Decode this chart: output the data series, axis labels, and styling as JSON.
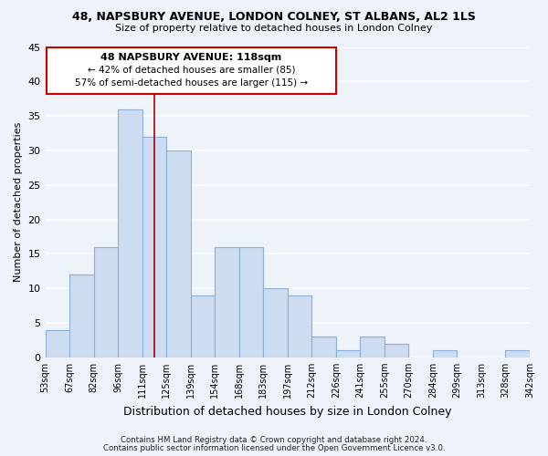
{
  "title": "48, NAPSBURY AVENUE, LONDON COLNEY, ST ALBANS, AL2 1LS",
  "subtitle": "Size of property relative to detached houses in London Colney",
  "xlabel": "Distribution of detached houses by size in London Colney",
  "ylabel": "Number of detached properties",
  "bin_labels": [
    "53sqm",
    "67sqm",
    "82sqm",
    "96sqm",
    "111sqm",
    "125sqm",
    "139sqm",
    "154sqm",
    "168sqm",
    "183sqm",
    "197sqm",
    "212sqm",
    "226sqm",
    "241sqm",
    "255sqm",
    "270sqm",
    "284sqm",
    "299sqm",
    "313sqm",
    "328sqm",
    "342sqm"
  ],
  "bar_heights": [
    4,
    12,
    16,
    36,
    32,
    30,
    9,
    16,
    16,
    10,
    9,
    3,
    1,
    3,
    2,
    0,
    1,
    0,
    0,
    1
  ],
  "bar_color": "#cddcf0",
  "bar_edgecolor": "#8ab0d8",
  "property_line_x": 4.0,
  "property_line_color": "#aa0000",
  "annotation_title": "48 NAPSBURY AVENUE: 118sqm",
  "annotation_line1": "← 42% of detached houses are smaller (85)",
  "annotation_line2": "57% of semi-detached houses are larger (115) →",
  "annotation_box_edgecolor": "#cc0000",
  "ylim": [
    0,
    45
  ],
  "yticks": [
    0,
    5,
    10,
    15,
    20,
    25,
    30,
    35,
    40,
    45
  ],
  "footnote1": "Contains HM Land Registry data © Crown copyright and database right 2024.",
  "footnote2": "Contains public sector information licensed under the Open Government Licence v3.0.",
  "bg_color": "#eef2f9",
  "grid_color": "#d0d8e8"
}
